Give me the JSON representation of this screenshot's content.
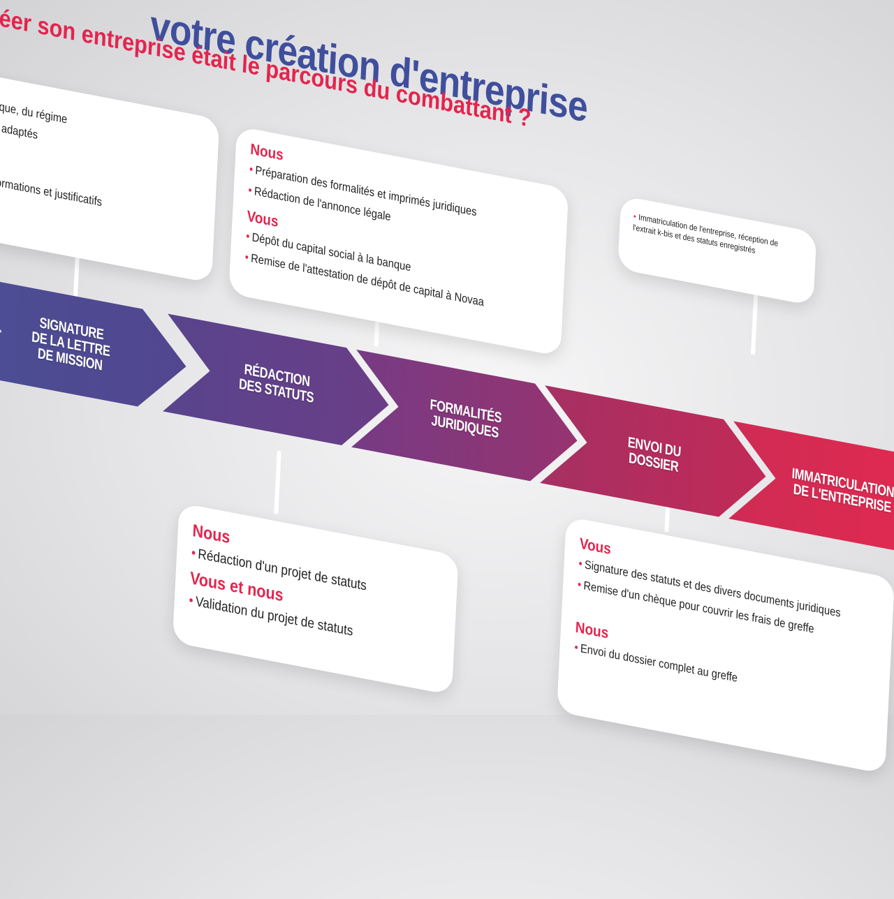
{
  "title": {
    "main": "votre création d'entreprise",
    "subtitle": "éer son entreprise était le parcours du combattant ?"
  },
  "cards": {
    "first": {
      "items": [
        "idique, du régime",
        "us adaptés",
        "informations et justificatifs"
      ]
    },
    "formalites": {
      "head1": "Nous",
      "items1": [
        "Préparation des formalités et imprimés juridiques",
        "Rédaction de l'annonce légale"
      ],
      "head2": "Vous",
      "items2": [
        "Dépôt du capital social à la banque",
        "Remise de l'attestation de dépôt de capital à Novaa"
      ]
    },
    "immatriculation": {
      "items": [
        "Immatriculation de l'entreprise, réception de l'extrait k-bis et des statuts enregistrés"
      ]
    },
    "statuts": {
      "head1": "Nous",
      "items1": [
        "Rédaction d'un projet de statuts"
      ],
      "head2": "Vous et nous",
      "items2": [
        "Validation du projet de statuts"
      ]
    },
    "envoi": {
      "head1": "Vous",
      "items1": [
        "Signature des statuts et des divers documents juridiques",
        "Remise d'un chèque pour couvrir les frais de greffe"
      ],
      "head2": "Nous",
      "items2": [
        "Envoi du dossier complet au greffe"
      ]
    }
  },
  "steps": [
    {
      "label": "Signature\nde la lettre\nde mission",
      "color_start": "#4a4f95",
      "color_end": "#52468f"
    },
    {
      "label": "Rédaction\ndes statuts",
      "color_start": "#58448d",
      "color_end": "#6b3e86"
    },
    {
      "label": "Formalités\njuridiques",
      "color_start": "#763b84",
      "color_end": "#97336f"
    },
    {
      "label": "Envoi du\ndossier",
      "color_start": "#a53063",
      "color_end": "#c22a57"
    },
    {
      "label": "Immatriculation\nde l'entreprise",
      "color_start": "#cf2b55",
      "color_end": "#e42a4f"
    }
  ],
  "colors": {
    "title": "#3f4f9c",
    "accent": "#e3254e"
  }
}
